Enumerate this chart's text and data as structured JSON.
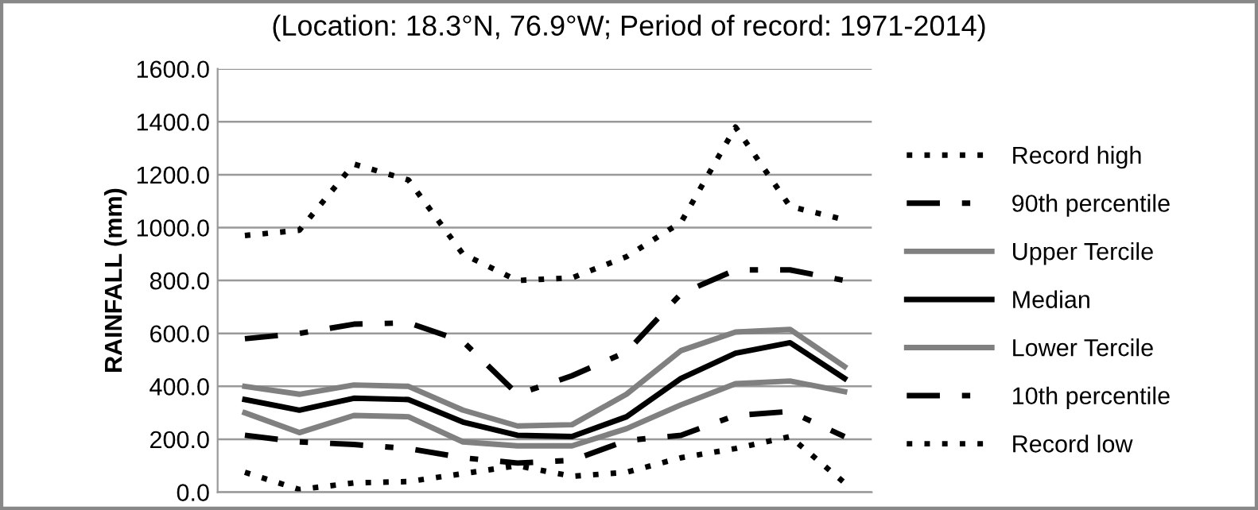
{
  "chart_data": {
    "type": "line",
    "title": "(Location: 18.3°N, 76.9°W; Period of record: 1971-2014)",
    "ylabel": "RAINFALL (mm)",
    "categories": [
      null,
      null,
      null,
      null,
      null,
      null,
      null,
      null,
      null,
      null,
      null,
      null
    ],
    "ylim": [
      0,
      1600
    ],
    "yticks": [
      {
        "value": 0,
        "label": "0.0"
      },
      {
        "value": 200,
        "label": "200.0"
      },
      {
        "value": 400,
        "label": "400.0"
      },
      {
        "value": 600,
        "label": "600.0"
      },
      {
        "value": 800,
        "label": "800.0"
      },
      {
        "value": 1000,
        "label": "1000.0"
      },
      {
        "value": 1200,
        "label": "1200.0"
      },
      {
        "value": 1400,
        "label": "1400.0"
      },
      {
        "value": 1600,
        "label": "1600.0"
      }
    ],
    "grid": "y",
    "legend": "right",
    "marker": "none",
    "series": [
      {
        "name": "Record high",
        "color": "#000000",
        "line_style": "dotted",
        "values": [
          970,
          990,
          1240,
          1180,
          900,
          800,
          810,
          890,
          1020,
          1380,
          1080,
          1030
        ]
      },
      {
        "name": "90th percentile",
        "color": "#000000",
        "line_style": "dashed",
        "values": [
          580,
          600,
          635,
          640,
          570,
          370,
          440,
          530,
          750,
          840,
          840,
          800
        ]
      },
      {
        "name": "Upper Tercile",
        "color": "#808080",
        "line_style": "solid",
        "values": [
          400,
          370,
          405,
          400,
          310,
          250,
          255,
          370,
          535,
          605,
          615,
          475
        ]
      },
      {
        "name": "Median",
        "color": "#000000",
        "line_style": "solid",
        "values": [
          350,
          310,
          355,
          350,
          265,
          215,
          210,
          285,
          430,
          525,
          565,
          430
        ]
      },
      {
        "name": "Lower Tercile",
        "color": "#808080",
        "line_style": "solid",
        "values": [
          300,
          225,
          290,
          285,
          190,
          175,
          175,
          240,
          330,
          410,
          420,
          380
        ]
      },
      {
        "name": "10th percentile",
        "color": "#000000",
        "line_style": "dashed",
        "values": [
          215,
          190,
          180,
          165,
          130,
          110,
          120,
          195,
          215,
          290,
          305,
          210
        ]
      },
      {
        "name": "Record low",
        "color": "#000000",
        "line_style": "dotted",
        "values": [
          75,
          10,
          35,
          40,
          70,
          100,
          60,
          75,
          130,
          165,
          210,
          35
        ]
      }
    ]
  }
}
